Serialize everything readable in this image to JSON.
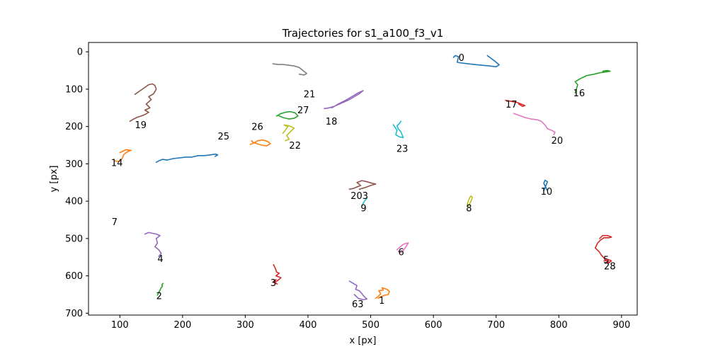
{
  "chart_data": {
    "type": "line",
    "title": "Trajectories for s1_a100_f3_v1",
    "xlabel": "x [px]",
    "ylabel": "y [px]",
    "xlim": [
      50,
      925
    ],
    "ylim": [
      -25,
      705
    ],
    "y_inverted": true,
    "grid": false,
    "xticks": [
      100,
      200,
      300,
      400,
      500,
      600,
      700,
      800,
      900
    ],
    "yticks": [
      0,
      100,
      200,
      300,
      400,
      500,
      600,
      700
    ],
    "colors": [
      "#1f77b4",
      "#ff7f0e",
      "#2ca02c",
      "#d62728",
      "#9467bd",
      "#8c564b",
      "#e377c2",
      "#7f7f7f",
      "#bcbd22",
      "#17becf"
    ],
    "series": [
      {
        "label": "0",
        "color": "#1f77b4",
        "label_pos": [
          640,
          15
        ],
        "x": [
          632,
          635,
          640,
          638,
          645,
          655,
          665,
          678,
          690,
          700,
          705,
          698,
          690,
          686
        ],
        "y": [
          15,
          10,
          13,
          28,
          30,
          32,
          34,
          36,
          38,
          40,
          35,
          25,
          15,
          10
        ]
      },
      {
        "label": "1",
        "color": "#ff7f0e",
        "label_pos": [
          513,
          665
        ],
        "x": [
          508,
          512,
          516,
          513,
          520,
          518,
          526,
          530,
          528,
          522,
          516,
          512
        ],
        "y": [
          660,
          655,
          648,
          640,
          638,
          632,
          636,
          642,
          650,
          652,
          656,
          660
        ]
      },
      {
        "label": "2",
        "color": "#2ca02c",
        "label_pos": [
          158,
          653
        ],
        "x": [
          160,
          162,
          164,
          166,
          168,
          167,
          169
        ],
        "y": [
          652,
          645,
          638,
          632,
          627,
          624,
          620
        ]
      },
      {
        "label": "3",
        "color": "#d62728",
        "label_pos": [
          340,
          618
        ],
        "x": [
          345,
          348,
          350,
          354,
          349,
          357,
          352,
          346,
          351,
          345,
          349
        ],
        "y": [
          570,
          580,
          590,
          593,
          600,
          605,
          612,
          618,
          622,
          615,
          610
        ]
      },
      {
        "label": "4",
        "color": "#9467bd",
        "label_pos": [
          160,
          553
        ],
        "x": [
          140,
          146,
          152,
          158,
          164,
          158,
          160,
          156,
          162,
          166,
          162
        ],
        "y": [
          488,
          484,
          486,
          488,
          492,
          500,
          512,
          522,
          530,
          540,
          548
        ]
      },
      {
        "label": "5",
        "color": "#d62728",
        "label_pos": [
          871,
          556
        ],
        "x": [
          865,
          870,
          878,
          884,
          880,
          872,
          866,
          862,
          858,
          864,
          868,
          872,
          875,
          880
        ],
        "y": [
          500,
          492,
          492,
          496,
          498,
          498,
          505,
          512,
          525,
          535,
          545,
          552,
          560,
          562
        ]
      },
      {
        "label": "6",
        "color": "#e377c2",
        "label_pos": [
          544,
          535
        ],
        "x": [
          542,
          546,
          550,
          554,
          560,
          556,
          552,
          548,
          544
        ],
        "y": [
          530,
          524,
          518,
          514,
          512,
          522,
          532,
          538,
          534
        ]
      },
      {
        "label": "7",
        "color": "#7f7f7f",
        "label_pos": [
          87,
          455
        ],
        "x": [],
        "y": []
      },
      {
        "label": "8",
        "color": "#bcbd22",
        "label_pos": [
          652,
          418
        ],
        "x": [
          654,
          656,
          658,
          660,
          662,
          660,
          657,
          655
        ],
        "y": [
          408,
          398,
          390,
          386,
          390,
          400,
          410,
          414
        ]
      },
      {
        "label": "9",
        "color": "#17becf",
        "label_pos": [
          484,
          418
        ],
        "x": [
          486,
          488,
          490,
          492,
          494
        ],
        "y": [
          412,
          406,
          400,
          396,
          392
        ]
      },
      {
        "label": "10",
        "color": "#1f77b4",
        "label_pos": [
          771,
          373
        ],
        "x": [
          776,
          778,
          780,
          782,
          778,
          776,
          779,
          781
        ],
        "y": [
          372,
          364,
          356,
          348,
          344,
          352,
          362,
          370
        ]
      },
      {
        "label": "14",
        "color": "#ff7f0e",
        "label_pos": [
          86,
          296
        ],
        "x": [
          92,
          98,
          102,
          104,
          106,
          110,
          114,
          118,
          110,
          100
        ],
        "y": [
          292,
          294,
          290,
          284,
          276,
          270,
          266,
          264,
          262,
          270
        ]
      },
      {
        "label": "16",
        "color": "#2ca02c",
        "label_pos": [
          823,
          110
        ],
        "x": [
          826,
          828,
          830,
          826,
          834,
          844,
          856,
          866,
          874,
          882,
          878,
          870
        ],
        "y": [
          110,
          100,
          88,
          80,
          72,
          64,
          60,
          56,
          54,
          52,
          50,
          52
        ]
      },
      {
        "label": "17",
        "color": "#d62728",
        "label_pos": [
          715,
          140
        ],
        "x": [
          715,
          722,
          728,
          734,
          740,
          746,
          742,
          736
        ],
        "y": [
          130,
          132,
          134,
          136,
          140,
          144,
          146,
          140
        ]
      },
      {
        "label": "18",
        "color": "#9467bd",
        "label_pos": [
          428,
          185
        ],
        "x": [
          426,
          434,
          442,
          450,
          458,
          466,
          474,
          482,
          488,
          480,
          472,
          460,
          448,
          438
        ],
        "y": [
          152,
          150,
          146,
          140,
          134,
          128,
          120,
          112,
          104,
          110,
          118,
          130,
          140,
          150
        ]
      },
      {
        "label": "19",
        "color": "#8c564b",
        "label_pos": [
          124,
          195
        ],
        "x": [
          116,
          122,
          128,
          134,
          140,
          146,
          140,
          148,
          142,
          150,
          146,
          154,
          158,
          156,
          152,
          146,
          136,
          124
        ],
        "y": [
          186,
          180,
          175,
          172,
          168,
          162,
          156,
          150,
          140,
          128,
          120,
          112,
          100,
          90,
          86,
          88,
          100,
          114
        ]
      },
      {
        "label": "20",
        "color": "#e377c2",
        "label_pos": [
          788,
          237
        ],
        "x": [
          728,
          736,
          746,
          756,
          766,
          772,
          778,
          782,
          788,
          794,
          792
        ],
        "y": [
          165,
          170,
          176,
          180,
          182,
          186,
          196,
          206,
          210,
          215,
          222
        ]
      },
      {
        "label": "21",
        "color": "#7f7f7f",
        "label_pos": [
          393,
          112
        ],
        "x": [
          344,
          352,
          360,
          370,
          378,
          386,
          392,
          398,
          394,
          386
        ],
        "y": [
          32,
          34,
          34,
          36,
          38,
          42,
          50,
          58,
          62,
          60
        ]
      },
      {
        "label": "22",
        "color": "#bcbd22",
        "label_pos": [
          370,
          250
        ],
        "x": [
          360,
          364,
          368,
          362,
          370,
          378,
          372,
          366,
          370,
          364
        ],
        "y": [
          218,
          210,
          200,
          196,
          198,
          204,
          214,
          224,
          234,
          238
        ]
      },
      {
        "label": "23",
        "color": "#17becf",
        "label_pos": [
          541,
          258
        ],
        "x": [
          536,
          538,
          542,
          540,
          546,
          552,
          548,
          544,
          542,
          546,
          548
        ],
        "y": [
          195,
          200,
          210,
          222,
          228,
          230,
          214,
          206,
          198,
          192,
          186
        ]
      },
      {
        "label": "25",
        "color": "#1f77b4",
        "label_pos": [
          256,
          225
        ],
        "x": [
          158,
          162,
          168,
          175,
          185,
          195,
          205,
          215,
          225,
          235,
          245,
          252,
          256,
          252
        ],
        "y": [
          296,
          292,
          288,
          290,
          286,
          284,
          282,
          282,
          278,
          278,
          276,
          274,
          276,
          280
        ]
      },
      {
        "label": "26",
        "color": "#ff7f0e",
        "label_pos": [
          310,
          200
        ],
        "x": [
          308,
          314,
          320,
          328,
          336,
          340,
          334,
          326,
          318,
          312,
          310
        ],
        "y": [
          248,
          244,
          238,
          236,
          240,
          246,
          252,
          250,
          246,
          242,
          238
        ]
      },
      {
        "label": "27",
        "color": "#2ca02c",
        "label_pos": [
          383,
          155
        ],
        "x": [
          350,
          356,
          364,
          372,
          380,
          384,
          378,
          370,
          360,
          352
        ],
        "y": [
          172,
          166,
          162,
          160,
          164,
          172,
          178,
          180,
          176,
          170
        ]
      },
      {
        "label": "28",
        "color": "#d62728",
        "label_pos": [
          872,
          573
        ],
        "x": [
          872,
          878,
          884,
          880,
          874
        ],
        "y": [
          560,
          556,
          560,
          565,
          566
        ]
      },
      {
        "label": "63",
        "color": "#9467bd",
        "label_pos": [
          470,
          675
        ],
        "x": [
          466,
          472,
          478,
          476,
          482,
          486,
          490,
          494,
          488,
          480,
          474
        ],
        "y": [
          614,
          620,
          626,
          636,
          640,
          648,
          656,
          662,
          664,
          660,
          650
        ]
      },
      {
        "label": "203",
        "color": "#8c564b",
        "label_pos": [
          468,
          385
        ],
        "x": [
          466,
          472,
          478,
          484,
          478,
          486,
          494,
          502,
          508,
          500,
          490,
          482
        ],
        "y": [
          368,
          366,
          362,
          358,
          350,
          345,
          348,
          352,
          354,
          358,
          364,
          368
        ]
      }
    ]
  }
}
